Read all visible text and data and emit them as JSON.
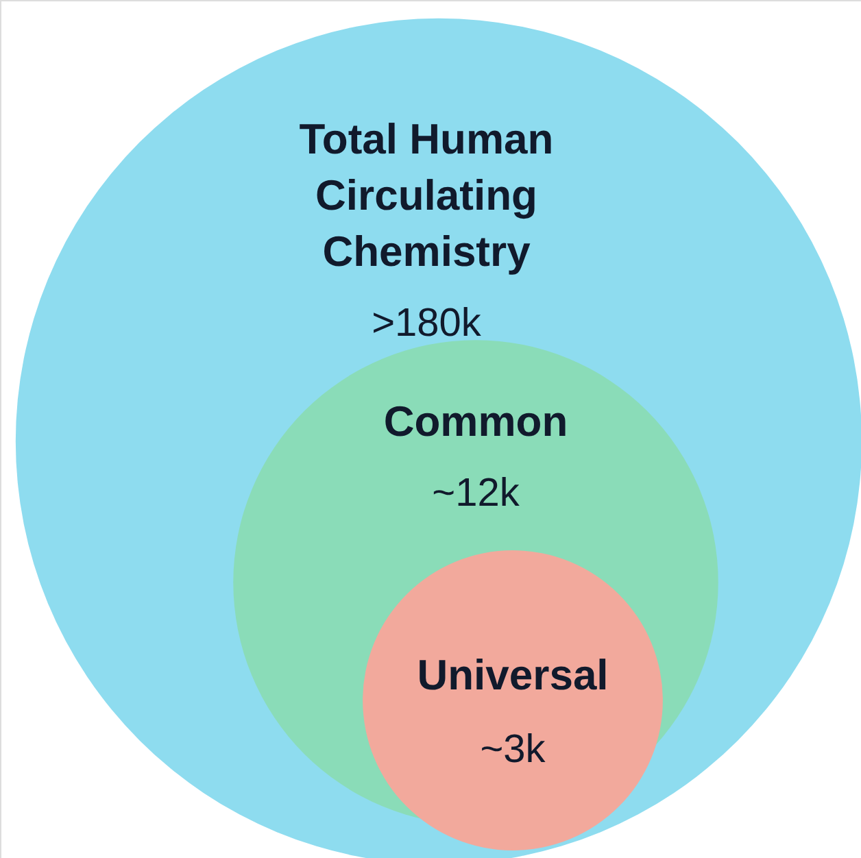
{
  "chart_data": {
    "type": "other",
    "categories": [
      "Total Human Circulating Chemistry",
      "Common",
      "Universal"
    ],
    "values": [
      180000,
      12000,
      3000
    ],
    "value_labels": [
      ">180k",
      "~12k",
      "~3k"
    ],
    "colors": [
      "#8edcef",
      "#8adcb8",
      "#f2a99c"
    ]
  }
}
